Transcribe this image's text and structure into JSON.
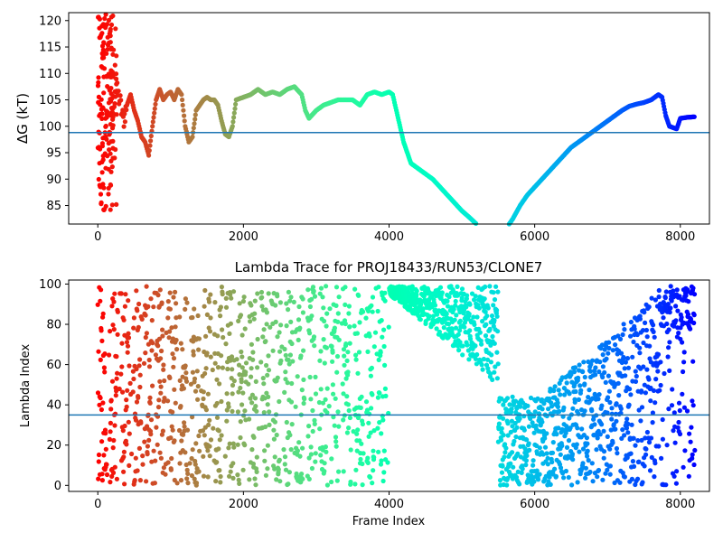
{
  "chart_data": [
    {
      "type": "scatter",
      "title": "",
      "xlabel": "",
      "ylabel": "ΔG (kT)",
      "xlim": [
        -400,
        8400
      ],
      "ylim": [
        81.5,
        121.5
      ],
      "x_ticks": [
        "0",
        "2000",
        "4000",
        "6000",
        "8000"
      ],
      "x_tick_values": [
        0,
        2000,
        4000,
        6000,
        8000
      ],
      "y_ticks": [
        "85",
        "90",
        "95",
        "100",
        "105",
        "110",
        "115",
        "120"
      ],
      "y_tick_values": [
        85,
        90,
        95,
        100,
        105,
        110,
        115,
        120
      ],
      "hline": 98.8,
      "hline_color": "#1f77b4",
      "colormap": "rainbow (red at frame 0 → violet at frame 8200)",
      "series": [
        {
          "points": [
            [
              5,
              120
            ],
            [
              10,
              110
            ],
            [
              15,
              105
            ],
            [
              20,
              100
            ],
            [
              25,
              98
            ],
            [
              30,
              95
            ],
            [
              35,
              90
            ],
            [
              40,
              87
            ],
            [
              45,
              84.5
            ],
            [
              50,
              110
            ],
            [
              55,
              118
            ],
            [
              60,
              103
            ],
            [
              65,
              114
            ],
            [
              70,
              99
            ],
            [
              80,
              106
            ],
            [
              90,
              112
            ],
            [
              100,
              96
            ],
            [
              110,
              120
            ],
            [
              120,
              108
            ],
            [
              130,
              93
            ],
            [
              140,
              104
            ],
            [
              150,
              110
            ],
            [
              170,
              106
            ],
            [
              200,
              103
            ],
            [
              250,
              107
            ],
            [
              300,
              105
            ],
            [
              350,
              101
            ],
            [
              400,
              104
            ],
            [
              450,
              106
            ],
            [
              500,
              103
            ],
            [
              550,
              101
            ],
            [
              600,
              98
            ],
            [
              650,
              97
            ],
            [
              700,
              94.5
            ],
            [
              750,
              100
            ],
            [
              800,
              105
            ],
            [
              850,
              107
            ],
            [
              900,
              105
            ],
            [
              950,
              106
            ],
            [
              1000,
              106.5
            ],
            [
              1050,
              105
            ],
            [
              1100,
              107
            ],
            [
              1150,
              106
            ],
            [
              1200,
              100
            ],
            [
              1250,
              97
            ],
            [
              1300,
              98
            ],
            [
              1350,
              103
            ],
            [
              1400,
              104
            ],
            [
              1450,
              105
            ],
            [
              1500,
              105.5
            ],
            [
              1550,
              105
            ],
            [
              1600,
              105
            ],
            [
              1650,
              104
            ],
            [
              1700,
              101
            ],
            [
              1750,
              98.5
            ],
            [
              1800,
              98
            ],
            [
              1850,
              100
            ],
            [
              1900,
              105
            ],
            [
              2000,
              105.5
            ],
            [
              2100,
              106
            ],
            [
              2200,
              107
            ],
            [
              2300,
              106
            ],
            [
              2400,
              106.5
            ],
            [
              2500,
              106
            ],
            [
              2600,
              107
            ],
            [
              2700,
              107.5
            ],
            [
              2800,
              106
            ],
            [
              2850,
              103
            ],
            [
              2900,
              101.5
            ],
            [
              3000,
              103
            ],
            [
              3100,
              104
            ],
            [
              3200,
              104.5
            ],
            [
              3300,
              105
            ],
            [
              3400,
              105
            ],
            [
              3500,
              105
            ],
            [
              3600,
              104
            ],
            [
              3700,
              106
            ],
            [
              3800,
              106.5
            ],
            [
              3900,
              106
            ],
            [
              4000,
              106.5
            ],
            [
              4050,
              106
            ],
            [
              4100,
              103
            ],
            [
              4200,
              97
            ],
            [
              4300,
              93
            ],
            [
              4400,
              92
            ],
            [
              4500,
              91
            ],
            [
              4600,
              90
            ],
            [
              4700,
              88.5
            ],
            [
              4800,
              87
            ],
            [
              4900,
              85.5
            ],
            [
              5000,
              84
            ],
            [
              5100,
              82.8
            ],
            [
              5200,
              81.5
            ],
            [
              5650,
              81.5
            ],
            [
              5700,
              82.5
            ],
            [
              5800,
              85
            ],
            [
              5900,
              87
            ],
            [
              6000,
              88.5
            ],
            [
              6100,
              90
            ],
            [
              6200,
              91.5
            ],
            [
              6300,
              93
            ],
            [
              6400,
              94.5
            ],
            [
              6500,
              96
            ],
            [
              6600,
              97
            ],
            [
              6700,
              98
            ],
            [
              6800,
              99
            ],
            [
              6900,
              100
            ],
            [
              7000,
              101
            ],
            [
              7100,
              102
            ],
            [
              7200,
              103
            ],
            [
              7300,
              103.8
            ],
            [
              7400,
              104.2
            ],
            [
              7500,
              104.5
            ],
            [
              7600,
              105
            ],
            [
              7700,
              106
            ],
            [
              7750,
              105.5
            ],
            [
              7800,
              102
            ],
            [
              7850,
              100
            ],
            [
              7950,
              99.5
            ],
            [
              8000,
              101.5
            ],
            [
              8100,
              101.7
            ],
            [
              8200,
              101.8
            ]
          ]
        }
      ]
    },
    {
      "type": "scatter",
      "title": "Lambda Trace for PROJ18433/RUN53/CLONE7",
      "xlabel": "Frame Index",
      "ylabel": "Lambda Index",
      "xlim": [
        -400,
        8400
      ],
      "ylim": [
        -3,
        102
      ],
      "x_ticks": [
        "0",
        "2000",
        "4000",
        "6000",
        "8000"
      ],
      "x_tick_values": [
        0,
        2000,
        4000,
        6000,
        8000
      ],
      "y_ticks": [
        "0",
        "20",
        "40",
        "60",
        "80",
        "100"
      ],
      "y_tick_values": [
        0,
        20,
        40,
        60,
        80,
        100
      ],
      "hline": 35,
      "hline_color": "#1f77b4",
      "colormap": "rainbow (red at frame 0 → violet at frame 8200)",
      "distribution": [
        {
          "frames": [
            0,
            4000
          ],
          "lambda_range": [
            0,
            99
          ],
          "note": "vertical bands spanning full lambda range"
        },
        {
          "frames": [
            4000,
            5500
          ],
          "lambda_range": [
            45,
            99
          ],
          "note": "cloud drifting from ~95 down to ~55"
        },
        {
          "frames": [
            5500,
            6200
          ],
          "lambda_range": [
            0,
            45
          ],
          "note": "dense low-lambda cloud"
        },
        {
          "frames": [
            6200,
            7700
          ],
          "lambda_range": [
            0,
            95
          ],
          "note": "upper bound rising from ~50 to ~95"
        },
        {
          "frames": [
            7700,
            8200
          ],
          "lambda_range": [
            0,
            99
          ],
          "note": "dense high cluster near 80–99, sparse below"
        }
      ]
    }
  ]
}
